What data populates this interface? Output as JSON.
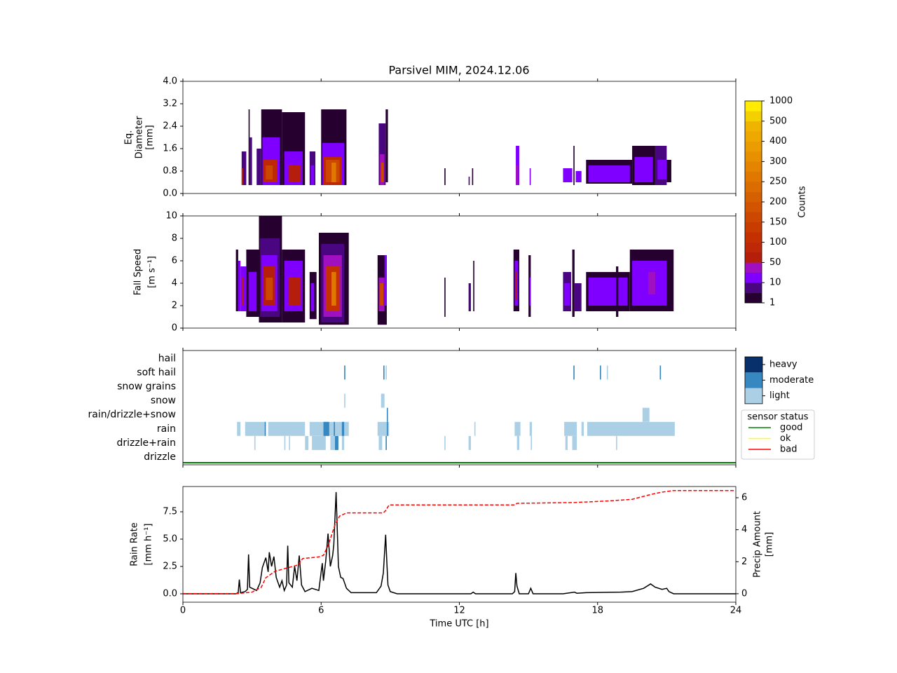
{
  "chart_data": [
    {
      "type": "heatmap",
      "title": "Parsivel MIM, 2024.12.06",
      "ylabel": [
        "Eq.",
        "Diameter",
        "[mm]"
      ],
      "xlim": [
        0,
        24
      ],
      "ylim": [
        0,
        4
      ],
      "yticks": [
        {
          "value": 0,
          "label": "0.0"
        },
        0.8,
        1.6,
        2.4,
        3.2,
        {
          "value": 4,
          "label": "4.0"
        }
      ],
      "cells": [
        [
          2.55,
          2.75,
          0.3,
          1.5,
          5
        ],
        [
          2.55,
          2.62,
          0.3,
          0.9,
          60
        ],
        [
          2.9,
          3.0,
          0.3,
          2.0,
          5
        ],
        [
          2.85,
          2.9,
          0.3,
          3.0,
          1
        ],
        [
          3.2,
          3.4,
          0.3,
          1.6,
          5
        ],
        [
          3.4,
          4.3,
          0.3,
          3.0,
          3
        ],
        [
          3.45,
          4.2,
          0.3,
          2.0,
          15
        ],
        [
          3.5,
          4.1,
          0.4,
          1.2,
          80
        ],
        [
          3.6,
          3.9,
          0.5,
          1.0,
          150
        ],
        [
          4.3,
          5.3,
          0.3,
          2.9,
          3
        ],
        [
          4.4,
          5.2,
          0.3,
          1.5,
          15
        ],
        [
          4.6,
          5.1,
          0.4,
          1.0,
          60
        ],
        [
          5.5,
          5.75,
          0.3,
          1.5,
          5
        ],
        [
          5.55,
          5.7,
          0.3,
          1.0,
          20
        ],
        [
          6.0,
          7.1,
          0.3,
          3.0,
          3
        ],
        [
          6.05,
          7.0,
          0.3,
          1.8,
          15
        ],
        [
          6.1,
          6.9,
          0.3,
          1.3,
          80
        ],
        [
          6.2,
          6.8,
          0.4,
          1.2,
          170
        ],
        [
          6.45,
          6.65,
          0.4,
          1.1,
          260
        ],
        [
          8.5,
          8.8,
          0.3,
          2.5,
          5
        ],
        [
          8.55,
          8.75,
          0.3,
          1.4,
          40
        ],
        [
          8.6,
          8.72,
          0.4,
          1.1,
          150
        ],
        [
          8.8,
          8.9,
          0.4,
          3.0,
          2
        ],
        [
          11.35,
          11.4,
          0.3,
          0.9,
          2
        ],
        [
          12.4,
          12.45,
          0.3,
          0.6,
          5
        ],
        [
          12.55,
          12.6,
          0.3,
          0.9,
          2
        ],
        [
          14.45,
          14.6,
          0.3,
          1.7,
          10
        ],
        [
          14.45,
          14.55,
          0.3,
          1.0,
          40
        ],
        [
          15.05,
          15.1,
          0.3,
          0.9,
          20
        ],
        [
          16.5,
          16.9,
          0.4,
          0.9,
          10
        ],
        [
          16.95,
          17.0,
          0.3,
          1.7,
          3
        ],
        [
          17.05,
          17.3,
          0.4,
          0.8,
          10
        ],
        [
          17.5,
          19.5,
          0.35,
          1.2,
          4
        ],
        [
          17.6,
          19.4,
          0.4,
          1.0,
          12
        ],
        [
          19.5,
          20.5,
          0.3,
          1.7,
          3
        ],
        [
          19.6,
          20.4,
          0.4,
          1.3,
          12
        ],
        [
          20.5,
          21.0,
          0.3,
          1.7,
          5
        ],
        [
          20.6,
          21.0,
          0.5,
          1.2,
          15
        ],
        [
          21.0,
          21.2,
          0.4,
          1.2,
          3
        ]
      ],
      "colorbar": {
        "label": "Counts",
        "levels": [
          1,
          5,
          10,
          30,
          50,
          75,
          100,
          125,
          150,
          175,
          200,
          225,
          250,
          275,
          300,
          350,
          400,
          450,
          500,
          750,
          1000
        ],
        "colors": [
          "#26002e",
          "#4a0680",
          "#8000ff",
          "#a010c0",
          "#b41e0a",
          "#be2806",
          "#c43000",
          "#c83c00",
          "#cc4800",
          "#d25400",
          "#d66000",
          "#da6c00",
          "#e07800",
          "#e48400",
          "#e89000",
          "#ea9c00",
          "#eea800",
          "#f0b400",
          "#f4d000",
          "#ffec00"
        ],
        "ticks": [
          1,
          10,
          50,
          100,
          150,
          200,
          250,
          300,
          400,
          500,
          1000
        ]
      }
    },
    {
      "type": "heatmap",
      "ylabel": [
        "Fall Speed",
        "[m s⁻¹]"
      ],
      "xlim": [
        0,
        24
      ],
      "ylim": [
        0,
        10
      ],
      "yticks": [
        0,
        2,
        4,
        6,
        8,
        10
      ],
      "cells": [
        [
          2.3,
          2.4,
          1.5,
          7.0,
          2
        ],
        [
          2.4,
          2.5,
          1.5,
          6.0,
          10
        ],
        [
          2.5,
          2.75,
          1.5,
          5.5,
          10
        ],
        [
          2.55,
          2.65,
          2.0,
          4.5,
          60
        ],
        [
          2.75,
          3.3,
          1.0,
          7.0,
          3
        ],
        [
          2.85,
          3.2,
          1.5,
          5.0,
          15
        ],
        [
          3.3,
          4.3,
          0.5,
          10.0,
          2
        ],
        [
          3.35,
          4.2,
          1.0,
          8.0,
          8
        ],
        [
          3.4,
          4.1,
          1.5,
          6.5,
          25
        ],
        [
          3.5,
          4.0,
          2.0,
          5.5,
          70
        ],
        [
          3.6,
          3.9,
          2.5,
          4.5,
          150
        ],
        [
          4.3,
          5.3,
          0.5,
          7.0,
          3
        ],
        [
          4.4,
          5.2,
          1.5,
          6.0,
          12
        ],
        [
          4.6,
          5.1,
          2.0,
          4.5,
          50
        ],
        [
          5.5,
          5.8,
          0.8,
          5.0,
          3
        ],
        [
          5.55,
          5.7,
          1.5,
          4.0,
          15
        ],
        [
          5.9,
          7.2,
          0.3,
          8.5,
          2
        ],
        [
          6.0,
          7.0,
          0.5,
          7.5,
          8
        ],
        [
          6.1,
          6.9,
          1.0,
          6.5,
          30
        ],
        [
          6.2,
          6.8,
          1.5,
          5.5,
          110
        ],
        [
          6.45,
          6.65,
          2.0,
          5.0,
          250
        ],
        [
          8.45,
          8.85,
          0.3,
          6.5,
          4
        ],
        [
          8.5,
          8.75,
          1.5,
          4.5,
          30
        ],
        [
          8.55,
          8.7,
          2.0,
          4.0,
          150
        ],
        [
          8.75,
          8.85,
          2.0,
          6.5,
          10
        ],
        [
          11.35,
          11.4,
          1.0,
          4.5,
          2
        ],
        [
          12.4,
          12.5,
          1.5,
          4.0,
          5
        ],
        [
          12.6,
          12.65,
          1.5,
          6.0,
          2
        ],
        [
          14.35,
          14.6,
          1.5,
          7.0,
          3
        ],
        [
          14.4,
          14.55,
          2.0,
          6.0,
          20
        ],
        [
          14.45,
          14.5,
          2.5,
          5.0,
          60
        ],
        [
          15.0,
          15.1,
          1.0,
          6.5,
          3
        ],
        [
          15.05,
          15.1,
          2.0,
          4.5,
          20
        ],
        [
          16.5,
          16.85,
          1.5,
          5.0,
          5
        ],
        [
          16.55,
          16.8,
          2.0,
          4.0,
          15
        ],
        [
          16.9,
          17.0,
          1.0,
          7.0,
          3
        ],
        [
          17.0,
          17.3,
          1.5,
          4.0,
          8
        ],
        [
          17.5,
          19.4,
          1.5,
          5.0,
          3
        ],
        [
          17.6,
          19.3,
          2.0,
          4.5,
          12
        ],
        [
          18.8,
          18.9,
          1.0,
          5.5,
          4
        ],
        [
          19.4,
          21.3,
          1.5,
          7.0,
          3
        ],
        [
          19.5,
          21.0,
          2.0,
          6.0,
          10
        ],
        [
          19.8,
          20.6,
          2.5,
          5.5,
          20
        ],
        [
          20.2,
          20.5,
          3.0,
          5.0,
          40
        ]
      ]
    },
    {
      "type": "timeline",
      "xlim": [
        0,
        24
      ],
      "categories": [
        "drizzle",
        "drizzle+rain",
        "rain",
        "rain/drizzle+snow",
        "snow",
        "snow grains",
        "soft hail",
        "hail"
      ],
      "series": [
        {
          "name": "light",
          "color": "#abd0e6",
          "segments": [
            [
              2,
              2.35,
              2.5
            ],
            [
              2,
              2.7,
              3.6
            ],
            [
              2,
              3.7,
              5.3
            ],
            [
              2,
              5.5,
              7.2
            ],
            [
              2,
              8.45,
              8.95
            ],
            [
              2,
              12.65,
              12.7
            ],
            [
              2,
              14.4,
              14.65
            ],
            [
              2,
              15.05,
              15.15
            ],
            [
              2,
              16.55,
              17.1
            ],
            [
              2,
              17.3,
              17.4
            ],
            [
              2,
              17.55,
              21.35
            ],
            [
              1,
              3.1,
              3.15
            ],
            [
              1,
              4.4,
              4.45
            ],
            [
              1,
              4.6,
              4.65
            ],
            [
              1,
              5.3,
              5.45
            ],
            [
              1,
              5.6,
              6.2
            ],
            [
              1,
              6.4,
              6.6
            ],
            [
              1,
              6.9,
              7.0
            ],
            [
              1,
              8.5,
              8.65
            ],
            [
              1,
              11.35,
              11.4
            ],
            [
              1,
              12.4,
              12.5
            ],
            [
              1,
              14.5,
              14.6
            ],
            [
              1,
              15.1,
              15.15
            ],
            [
              1,
              16.6,
              16.7
            ],
            [
              1,
              16.9,
              17.1
            ],
            [
              1,
              18.8,
              18.85
            ],
            [
              3,
              19.95,
              20.25
            ],
            [
              4,
              7.0,
              7.05
            ],
            [
              4,
              8.6,
              8.75
            ],
            [
              6,
              8.8,
              8.85
            ],
            [
              6,
              18.4,
              18.45
            ]
          ]
        },
        {
          "name": "moderate",
          "color": "#3787c0",
          "segments": [
            [
              2,
              3.55,
              3.6
            ],
            [
              2,
              6.1,
              6.35
            ],
            [
              2,
              6.55,
              6.6
            ],
            [
              2,
              6.9,
              7.0
            ],
            [
              2,
              8.85,
              8.9
            ],
            [
              1,
              6.6,
              6.75
            ],
            [
              1,
              8.8,
              8.85
            ],
            [
              3,
              8.85,
              8.9
            ],
            [
              6,
              7.0,
              7.05
            ],
            [
              6,
              8.7,
              8.75
            ],
            [
              6,
              16.95,
              17.0
            ],
            [
              6,
              18.1,
              18.15
            ],
            [
              6,
              20.7,
              20.75
            ]
          ]
        },
        {
          "name": "heavy",
          "color": "#08306b",
          "segments": []
        }
      ],
      "status": {
        "title": "sensor status",
        "series": [
          {
            "name": "good",
            "color": "#008000",
            "segments": [
              [
                0,
                24
              ]
            ]
          },
          {
            "name": "ok",
            "color": "#ffff00",
            "segments": []
          },
          {
            "name": "bad",
            "color": "#ff0000",
            "segments": []
          }
        ]
      }
    },
    {
      "type": "line",
      "xlim": [
        0,
        24
      ],
      "xticks": [
        0,
        6,
        12,
        18,
        24
      ],
      "xlabel": "Time UTC [h]",
      "ylabel": [
        "Rain Rate",
        "[mm h⁻¹]"
      ],
      "ylim": [
        -0.77,
        9.81
      ],
      "yticks": [
        {
          "value": 0,
          "label": "0.0"
        },
        2.5,
        {
          "value": 5,
          "label": "5.0"
        },
        7.5
      ],
      "y2label": [
        "Precip Amount",
        "[mm]"
      ],
      "y2lim": [
        -0.53,
        6.7
      ],
      "y2ticks": [
        0,
        2,
        4,
        6
      ],
      "series": [
        {
          "color": "#000000",
          "x": [
            0,
            2.3,
            2.4,
            2.45,
            2.5,
            2.7,
            2.8,
            2.85,
            2.9,
            3.0,
            3.2,
            3.35,
            3.45,
            3.6,
            3.7,
            3.75,
            3.85,
            3.95,
            4.05,
            4.2,
            4.3,
            4.4,
            4.5,
            4.55,
            4.6,
            4.75,
            4.85,
            4.95,
            5.05,
            5.15,
            5.3,
            5.6,
            5.9,
            6.05,
            6.1,
            6.2,
            6.3,
            6.4,
            6.5,
            6.55,
            6.65,
            6.75,
            6.85,
            6.95,
            7.1,
            7.3,
            8.4,
            8.6,
            8.7,
            8.8,
            8.85,
            8.9,
            9.0,
            9.3,
            12.5,
            12.6,
            12.7,
            14.3,
            14.4,
            14.45,
            14.5,
            14.6,
            15.0,
            15.1,
            15.2,
            16.5,
            17.0,
            17.1,
            17.5,
            19.0,
            19.5,
            20.0,
            20.3,
            20.5,
            20.8,
            21.0,
            21.1,
            21.3,
            24
          ],
          "values": [
            0,
            0,
            0.1,
            1.3,
            0.1,
            0.2,
            0.4,
            3.6,
            0.6,
            0.5,
            0.3,
            1.0,
            2.4,
            3.3,
            2.0,
            3.8,
            2.5,
            3.4,
            1.5,
            0.6,
            1.2,
            0.3,
            0.8,
            4.4,
            1.0,
            0.6,
            2.5,
            1.2,
            3.5,
            0.8,
            0.2,
            0.5,
            0.3,
            2.8,
            1.2,
            3.0,
            5.5,
            2.5,
            3.5,
            4.5,
            9.3,
            2.5,
            1.5,
            1.4,
            0.5,
            0.1,
            0.1,
            0.7,
            1.9,
            5.4,
            3.0,
            0.8,
            0.2,
            0,
            0,
            0.15,
            0,
            0,
            0.2,
            1.9,
            0.7,
            0,
            0,
            0.5,
            0,
            0,
            0.15,
            0.05,
            0.1,
            0.15,
            0.2,
            0.5,
            0.9,
            0.6,
            0.4,
            0.5,
            0.2,
            0,
            0
          ]
        },
        {
          "color": "#ff0000",
          "dashed": true,
          "axis": "y2",
          "x": [
            0,
            2.3,
            3.0,
            3.4,
            3.6,
            4.0,
            4.5,
            5.0,
            5.2,
            5.9,
            6.1,
            6.3,
            6.6,
            6.8,
            7.1,
            8.7,
            8.8,
            8.95,
            14.4,
            14.5,
            17.0,
            18.5,
            19.5,
            20.3,
            20.8,
            21.3,
            24
          ],
          "values": [
            0,
            0,
            0.1,
            0.4,
            1.0,
            1.4,
            1.6,
            1.8,
            2.2,
            2.3,
            2.4,
            3.0,
            4.3,
            4.85,
            5.05,
            5.05,
            5.2,
            5.55,
            5.55,
            5.65,
            5.7,
            5.8,
            5.9,
            6.2,
            6.35,
            6.45,
            6.45
          ]
        }
      ]
    }
  ]
}
